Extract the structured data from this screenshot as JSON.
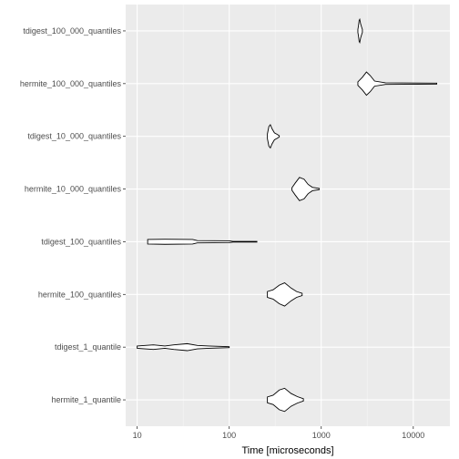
{
  "chart_data": {
    "type": "violin",
    "orientation": "horizontal",
    "title": "",
    "xlabel": "Time [microseconds]",
    "ylabel": "",
    "x_scale": "log10",
    "xlim": [
      7.5,
      25000
    ],
    "x_ticks": [
      10,
      100,
      1000,
      10000
    ],
    "x_tick_labels": [
      "10",
      "100",
      "1000",
      "10000"
    ],
    "grid": true,
    "legend": "none",
    "categories": [
      "tdigest_100_000_quantiles",
      "hermite_100_000_quantiles",
      "tdigest_10_000_quantiles",
      "hermite_10_000_quantiles",
      "tdigest_100_quantiles",
      "hermite_100_quantiles",
      "tdigest_1_quantile",
      "hermite_1_quantile"
    ],
    "series": [
      {
        "category": "tdigest_100_000_quantiles",
        "min": 2500,
        "mode": 2600,
        "max": 2800,
        "profile": [
          [
            2500,
            0.12
          ],
          [
            2540,
            0.45
          ],
          [
            2580,
            0.9
          ],
          [
            2620,
            1.0
          ],
          [
            2680,
            0.6
          ],
          [
            2740,
            0.35
          ],
          [
            2800,
            0.12
          ]
        ]
      },
      {
        "category": "hermite_100_000_quantiles",
        "min": 2500,
        "mode": 3100,
        "max": 18000,
        "profile": [
          [
            2500,
            0.15
          ],
          [
            2800,
            0.55
          ],
          [
            3100,
            1.0
          ],
          [
            3400,
            0.7
          ],
          [
            3800,
            0.22
          ],
          [
            5000,
            0.07
          ],
          [
            18000,
            0.04
          ]
        ]
      },
      {
        "category": "tdigest_10_000_quantiles",
        "min": 260,
        "mode": 280,
        "max": 350,
        "profile": [
          [
            260,
            0.2
          ],
          [
            270,
            0.85
          ],
          [
            280,
            1.0
          ],
          [
            292,
            0.65
          ],
          [
            310,
            0.3
          ],
          [
            330,
            0.18
          ],
          [
            350,
            0.05
          ]
        ]
      },
      {
        "category": "hermite_10_000_quantiles",
        "min": 480,
        "mode": 600,
        "max": 950,
        "profile": [
          [
            480,
            0.1
          ],
          [
            520,
            0.5
          ],
          [
            580,
            1.0
          ],
          [
            650,
            0.85
          ],
          [
            720,
            0.4
          ],
          [
            800,
            0.15
          ],
          [
            950,
            0.05
          ]
        ]
      },
      {
        "category": "tdigest_100_quantiles",
        "min": 13,
        "mode": 20,
        "max": 200,
        "profile": [
          [
            13,
            0.2
          ],
          [
            20,
            0.22
          ],
          [
            40,
            0.2
          ],
          [
            45,
            0.1
          ],
          [
            100,
            0.08
          ],
          [
            110,
            0.03
          ],
          [
            200,
            0.03
          ]
        ]
      },
      {
        "category": "hermite_100_quantiles",
        "min": 260,
        "mode": 380,
        "max": 620,
        "profile": [
          [
            260,
            0.25
          ],
          [
            300,
            0.4
          ],
          [
            350,
            0.8
          ],
          [
            400,
            1.0
          ],
          [
            470,
            0.55
          ],
          [
            540,
            0.25
          ],
          [
            620,
            0.1
          ]
        ]
      },
      {
        "category": "tdigest_1_quantile",
        "min": 10,
        "mode": 30,
        "max": 100,
        "profile": [
          [
            10,
            0.1
          ],
          [
            15,
            0.2
          ],
          [
            20,
            0.1
          ],
          [
            25,
            0.2
          ],
          [
            35,
            0.3
          ],
          [
            45,
            0.15
          ],
          [
            60,
            0.1
          ],
          [
            100,
            0.04
          ]
        ]
      },
      {
        "category": "hermite_1_quantile",
        "min": 260,
        "mode": 380,
        "max": 640,
        "profile": [
          [
            260,
            0.25
          ],
          [
            300,
            0.4
          ],
          [
            350,
            0.85
          ],
          [
            400,
            1.0
          ],
          [
            470,
            0.55
          ],
          [
            550,
            0.28
          ],
          [
            640,
            0.1
          ]
        ]
      }
    ]
  }
}
